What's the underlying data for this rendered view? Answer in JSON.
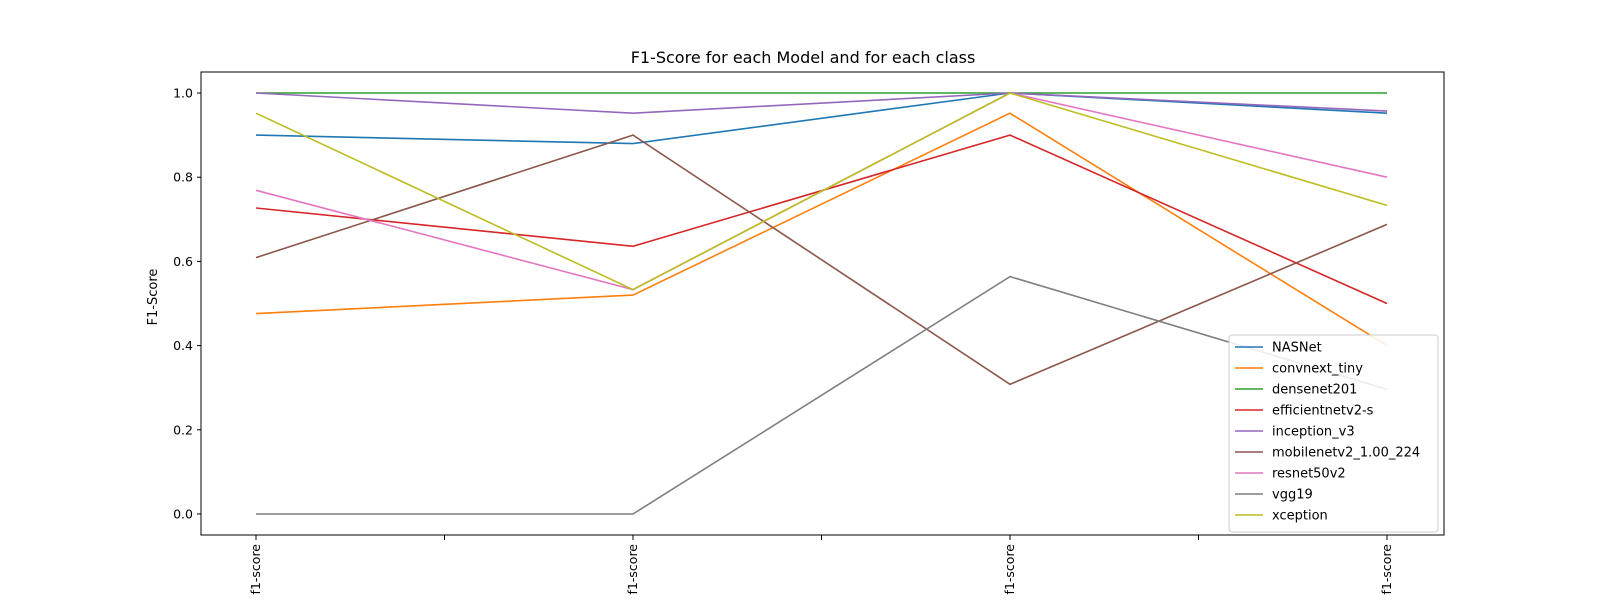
{
  "chart_data": {
    "type": "line",
    "title": "F1-Score for each Model and for each class",
    "xlabel": "",
    "ylabel": "F1-Score",
    "x_tick_labels": [
      "f1-score",
      "f1-score",
      "f1-score",
      "f1-score"
    ],
    "y_ticks": [
      "0.0",
      "0.2",
      "0.4",
      "0.6",
      "0.8",
      "1.0"
    ],
    "ylim": [
      -0.05,
      1.05
    ],
    "grid": false,
    "legend_position": "lower-right",
    "series": [
      {
        "name": "NASNet",
        "color": "#1f77b4",
        "values": [
          0.9,
          0.88,
          1.0,
          0.952
        ]
      },
      {
        "name": "convnext_tiny",
        "color": "#ff7f0e",
        "values": [
          0.476,
          0.52,
          0.952,
          0.4
        ]
      },
      {
        "name": "densenet201",
        "color": "#2ca02c",
        "values": [
          1.0,
          1.0,
          1.0,
          1.0
        ]
      },
      {
        "name": "efficientnetv2-s",
        "color": "#d62728",
        "values": [
          0.727,
          0.636,
          0.9,
          0.5
        ]
      },
      {
        "name": "inception_v3",
        "color": "#9467bd",
        "values": [
          1.0,
          0.952,
          1.0,
          0.957
        ]
      },
      {
        "name": "mobilenetv2_1.00_224",
        "color": "#8c564b",
        "values": [
          0.609,
          0.9,
          0.308,
          0.688
        ]
      },
      {
        "name": "resnet50v2",
        "color": "#e377c2",
        "values": [
          0.769,
          0.533,
          1.0,
          0.8
        ]
      },
      {
        "name": "vgg19",
        "color": "#7f7f7f",
        "values": [
          0.0,
          0.0,
          0.564,
          0.296
        ]
      },
      {
        "name": "xception",
        "color": "#bcbd22",
        "values": [
          0.952,
          0.533,
          1.0,
          0.733
        ]
      }
    ]
  }
}
